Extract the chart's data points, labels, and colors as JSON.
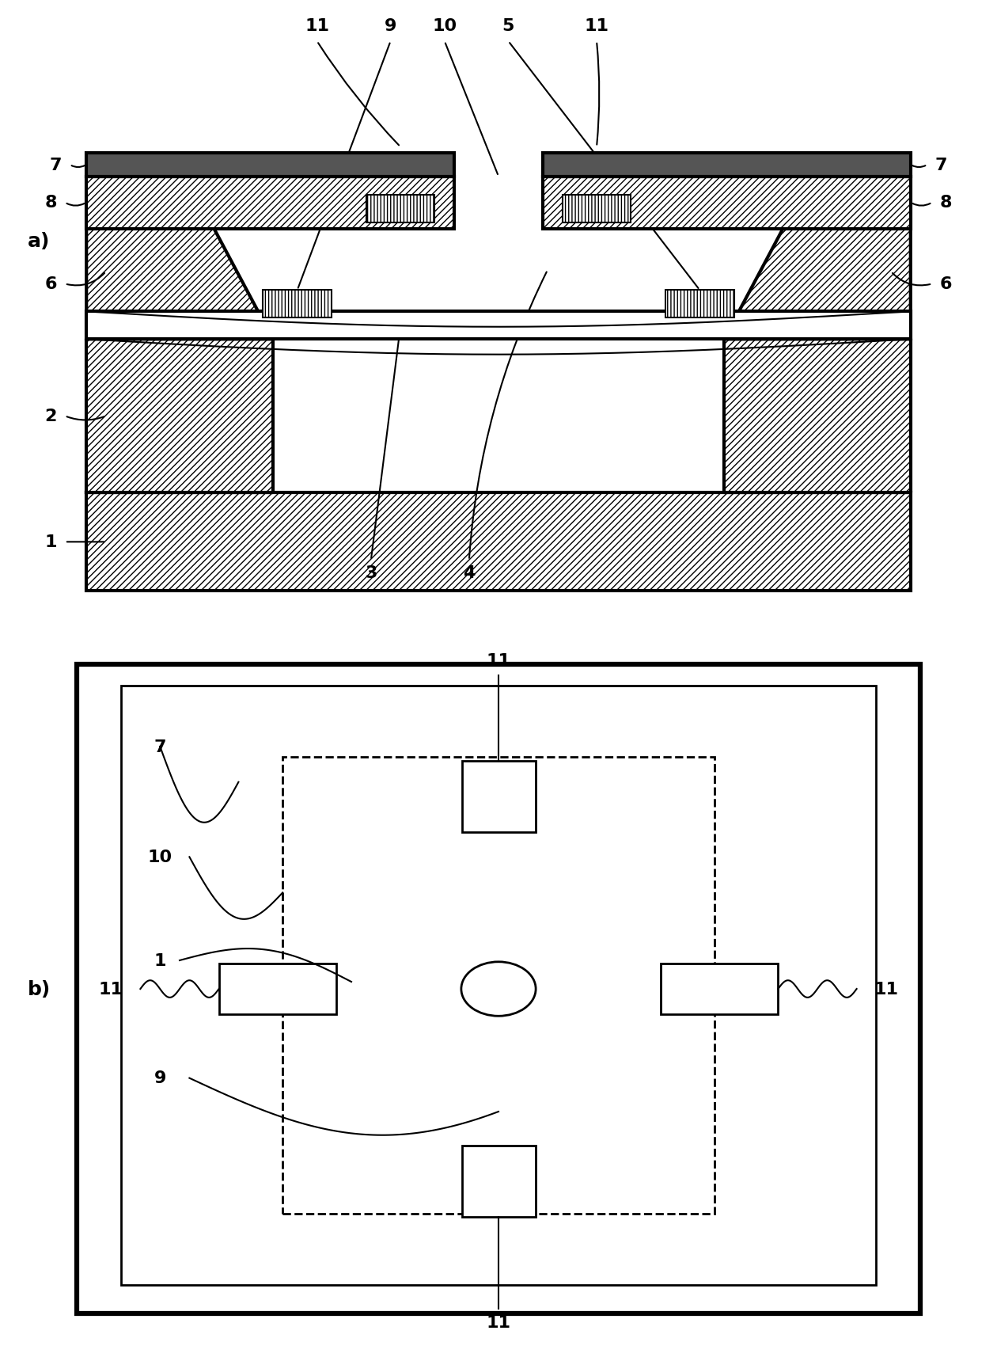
{
  "bg_color": "#ffffff",
  "line_color": "#000000",
  "fig_width": 12.4,
  "fig_height": 17.84
}
